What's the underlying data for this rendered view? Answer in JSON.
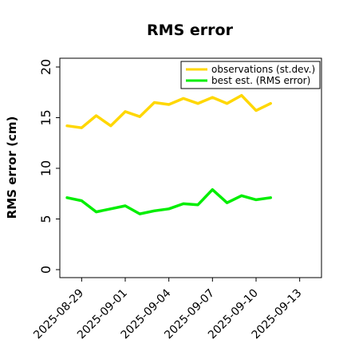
{
  "chart_data": {
    "type": "line",
    "title": "RMS error",
    "xlabel": "",
    "ylabel": "RMS error (cm)",
    "ylim": [
      0,
      20
    ],
    "xlim": [
      "2025-08-27T12:00",
      "2025-09-14T12:00"
    ],
    "yticks": [
      0,
      5,
      10,
      15,
      20
    ],
    "xticks": [
      "2025-08-29",
      "2025-09-01",
      "2025-09-04",
      "2025-09-07",
      "2025-09-10",
      "2025-09-13"
    ],
    "highlight_tick": "2025-09-04",
    "highlight_color": "#228b22",
    "grid": false,
    "legend_position": "top-right",
    "x": [
      "2025-08-28",
      "2025-08-29",
      "2025-08-30",
      "2025-08-31",
      "2025-09-01",
      "2025-09-02",
      "2025-09-03",
      "2025-09-04",
      "2025-09-05",
      "2025-09-06",
      "2025-09-07",
      "2025-09-08",
      "2025-09-09",
      "2025-09-10",
      "2025-09-11"
    ],
    "series": [
      {
        "name": "observations (st.dev.)",
        "color": "#ffd700",
        "values": [
          14.2,
          14.0,
          15.2,
          14.2,
          15.6,
          15.1,
          16.5,
          16.3,
          16.9,
          16.4,
          17.0,
          16.4,
          17.2,
          15.7,
          16.4
        ]
      },
      {
        "name": "best est. (RMS error)",
        "color": "#00ee00",
        "values": [
          7.1,
          6.8,
          5.7,
          6.0,
          6.3,
          5.5,
          5.8,
          6.0,
          6.5,
          6.4,
          7.9,
          6.6,
          7.3,
          6.9,
          7.1
        ]
      }
    ]
  }
}
